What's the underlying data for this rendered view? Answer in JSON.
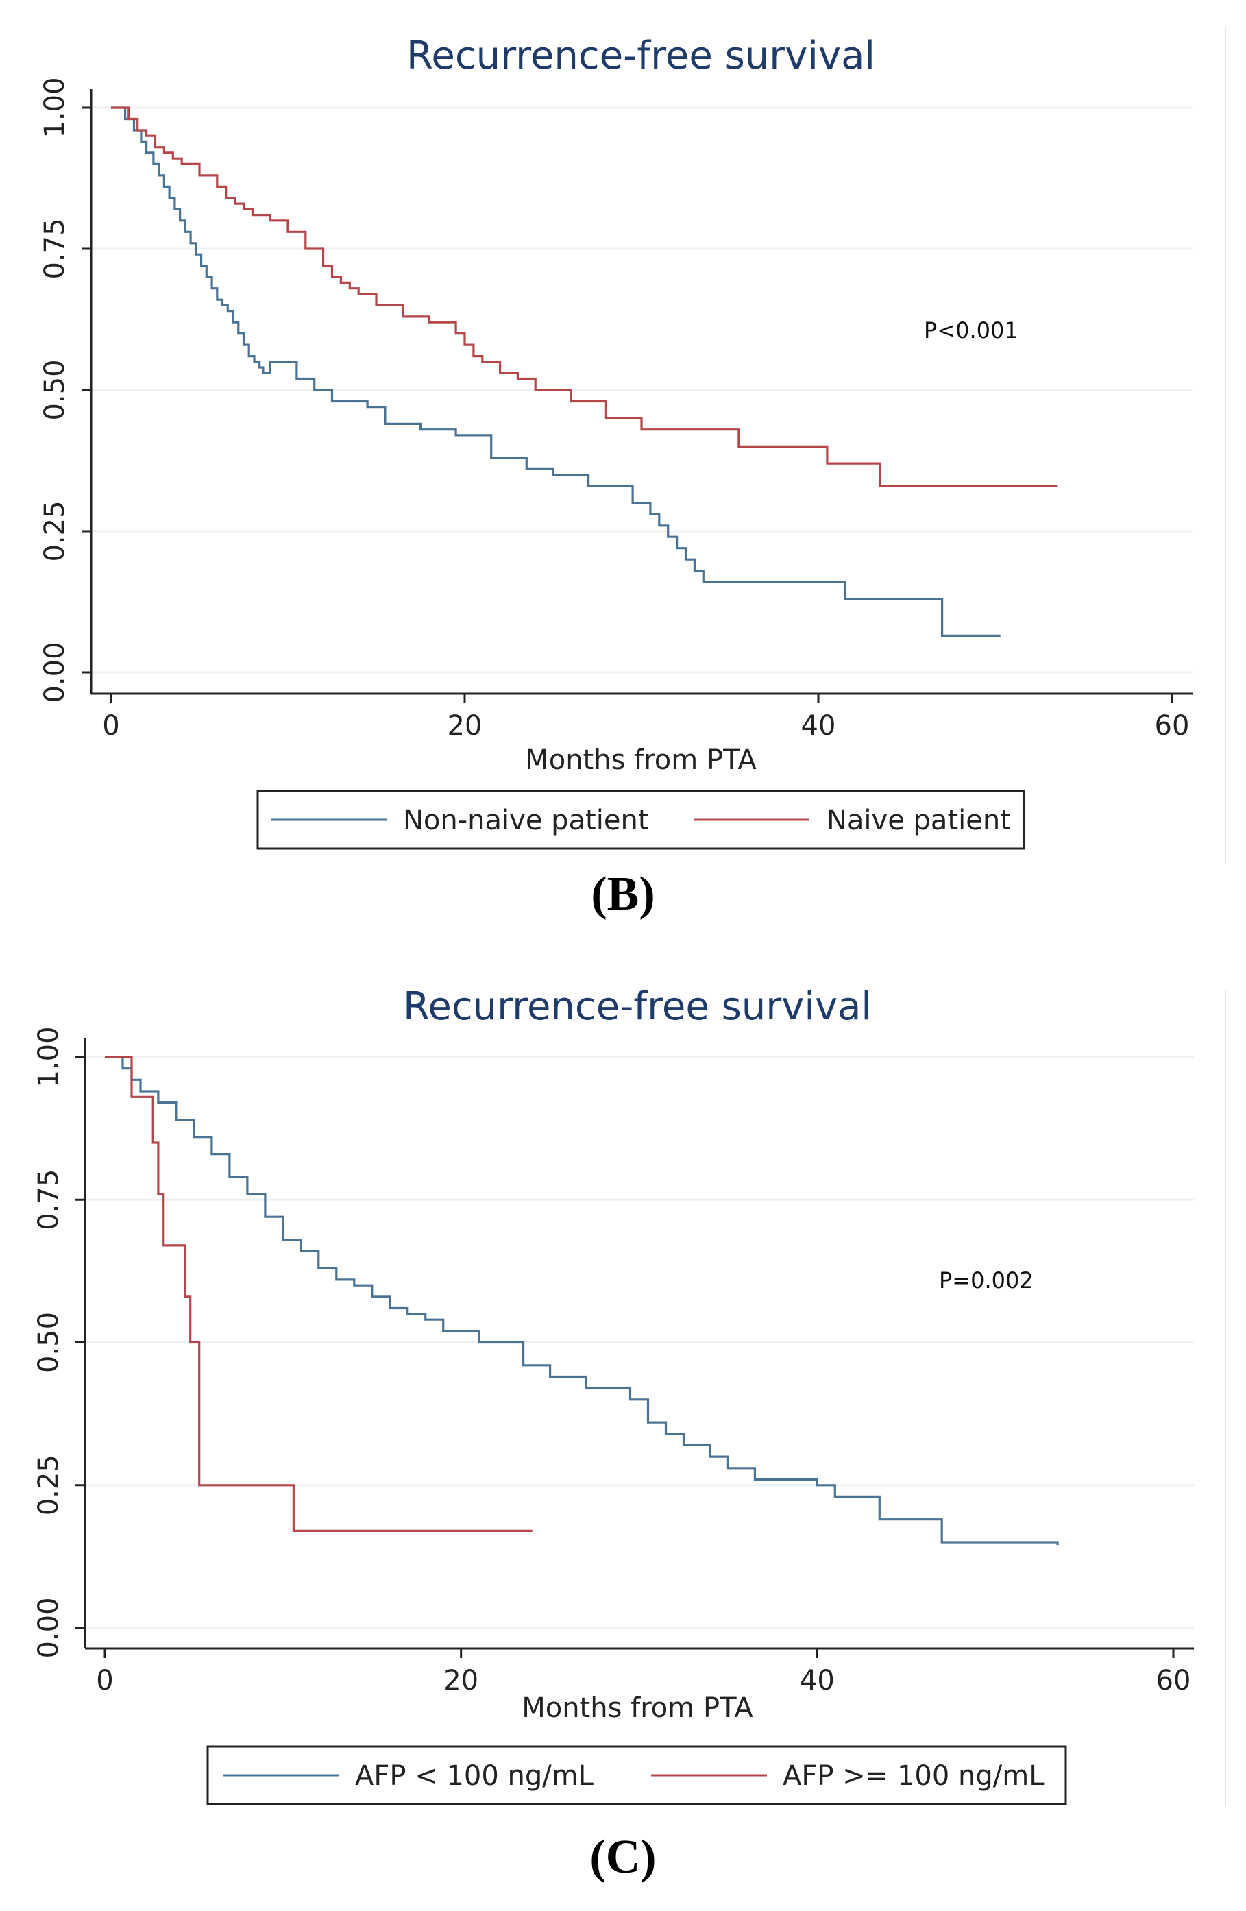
{
  "chart_data": [
    {
      "id": "B",
      "type": "line",
      "panel_label": "(B)",
      "title": "Recurrence-free survival",
      "xlabel": "Months from PTA",
      "ylabel": "",
      "xlim": [
        0,
        60
      ],
      "ylim": [
        0,
        1
      ],
      "xticks": [
        0,
        20,
        40,
        60
      ],
      "xtick_labels": [
        "0",
        "20",
        "40",
        "60"
      ],
      "yticks": [
        0,
        0.25,
        0.5,
        0.75,
        1.0
      ],
      "ytick_labels": [
        "0.00",
        "0.25",
        "0.50",
        "0.75",
        "1.00"
      ],
      "grid": true,
      "annotation": "P<0.001",
      "legend": [
        "Non-naive patient",
        "Naive patient"
      ],
      "series": [
        {
          "name": "Non-naive patient",
          "color": "#4a7396",
          "x": [
            0,
            0.8,
            1.3,
            1.7,
            2.0,
            2.4,
            2.7,
            3.0,
            3.3,
            3.6,
            3.9,
            4.2,
            4.5,
            4.8,
            5.1,
            5.4,
            5.7,
            6.0,
            6.3,
            6.6,
            6.9,
            7.2,
            7.5,
            7.8,
            8.1,
            8.4,
            8.6,
            9.0,
            10.5,
            11.5,
            12.5,
            14.5,
            15.5,
            17.5,
            19.5,
            21.5,
            23.5,
            25.0,
            27.0,
            29.5,
            30.5,
            31.0,
            31.5,
            32.0,
            32.5,
            33.0,
            33.5,
            41.5,
            47.0,
            50.3
          ],
          "y": [
            1.0,
            0.98,
            0.96,
            0.94,
            0.92,
            0.9,
            0.88,
            0.86,
            0.84,
            0.82,
            0.8,
            0.78,
            0.76,
            0.74,
            0.72,
            0.7,
            0.68,
            0.66,
            0.65,
            0.64,
            0.62,
            0.6,
            0.58,
            0.56,
            0.55,
            0.54,
            0.53,
            0.55,
            0.52,
            0.5,
            0.48,
            0.47,
            0.44,
            0.43,
            0.42,
            0.38,
            0.36,
            0.35,
            0.33,
            0.3,
            0.28,
            0.26,
            0.24,
            0.22,
            0.2,
            0.18,
            0.16,
            0.13,
            0.065,
            0.065
          ]
        },
        {
          "name": "Naive patient",
          "color": "#b5474b",
          "x": [
            0,
            1.0,
            1.5,
            2.0,
            2.5,
            3.0,
            3.5,
            4.0,
            5.0,
            6.0,
            6.5,
            7.0,
            7.5,
            8.0,
            9.0,
            10.0,
            11.0,
            12.0,
            12.5,
            13.0,
            13.5,
            14.0,
            15.0,
            16.5,
            18.0,
            19.5,
            20.0,
            20.5,
            21.0,
            22.0,
            23.0,
            24.0,
            26.0,
            28.0,
            30.0,
            35.5,
            40.5,
            43.5,
            53.5
          ],
          "y": [
            1.0,
            0.98,
            0.96,
            0.95,
            0.93,
            0.92,
            0.91,
            0.9,
            0.88,
            0.86,
            0.84,
            0.83,
            0.82,
            0.81,
            0.8,
            0.78,
            0.75,
            0.72,
            0.7,
            0.69,
            0.68,
            0.67,
            0.65,
            0.63,
            0.62,
            0.6,
            0.58,
            0.56,
            0.55,
            0.53,
            0.52,
            0.5,
            0.48,
            0.45,
            0.43,
            0.4,
            0.37,
            0.33,
            0.33
          ]
        }
      ]
    },
    {
      "id": "C",
      "type": "line",
      "panel_label": "(C)",
      "title": "Recurrence-free survival",
      "xlabel": "Months from PTA",
      "ylabel": "",
      "xlim": [
        0,
        60
      ],
      "ylim": [
        0,
        1
      ],
      "xticks": [
        0,
        20,
        40,
        60
      ],
      "xtick_labels": [
        "0",
        "20",
        "40",
        "60"
      ],
      "yticks": [
        0,
        0.25,
        0.5,
        0.75,
        1.0
      ],
      "ytick_labels": [
        "0.00",
        "0.25",
        "0.50",
        "0.75",
        "1.00"
      ],
      "grid": true,
      "annotation": "P=0.002",
      "legend": [
        "AFP < 100 ng/mL",
        "AFP >= 100 ng/mL"
      ],
      "series": [
        {
          "name": "AFP < 100 ng/mL",
          "color": "#4a7396",
          "x": [
            0,
            1.0,
            1.5,
            2.0,
            3.0,
            4.0,
            5.0,
            6.0,
            7.0,
            8.0,
            9.0,
            10.0,
            11.0,
            12.0,
            13.0,
            14.0,
            15.0,
            16.0,
            17.0,
            18.0,
            19.0,
            21.0,
            23.5,
            25.0,
            27.0,
            29.5,
            30.5,
            31.5,
            32.5,
            34.0,
            35.0,
            36.5,
            40.0,
            41.0,
            43.5,
            47.0,
            53.5
          ],
          "y": [
            1.0,
            0.98,
            0.96,
            0.94,
            0.92,
            0.89,
            0.86,
            0.83,
            0.79,
            0.76,
            0.72,
            0.68,
            0.66,
            0.63,
            0.61,
            0.6,
            0.58,
            0.56,
            0.55,
            0.54,
            0.52,
            0.5,
            0.46,
            0.44,
            0.42,
            0.4,
            0.36,
            0.34,
            0.32,
            0.3,
            0.28,
            0.26,
            0.25,
            0.23,
            0.19,
            0.15,
            0.145
          ]
        },
        {
          "name": "AFP >= 100 ng/mL",
          "color": "#b5474b",
          "x": [
            0,
            1.5,
            2.7,
            3.0,
            3.3,
            4.5,
            4.8,
            5.3,
            10.6,
            24.0
          ],
          "y": [
            1.0,
            0.93,
            0.85,
            0.76,
            0.67,
            0.58,
            0.5,
            0.25,
            0.17,
            0.17
          ]
        }
      ]
    }
  ]
}
